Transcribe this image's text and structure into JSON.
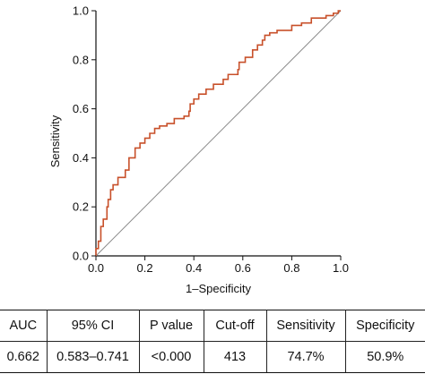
{
  "chart_data": {
    "type": "line",
    "xlabel": "1–Specificity",
    "ylabel": "Sensitivity",
    "xlim": [
      0,
      1
    ],
    "ylim": [
      0,
      1
    ],
    "xticks": [
      "0.0",
      "0.2",
      "0.4",
      "0.6",
      "0.8",
      "1.0"
    ],
    "yticks": [
      "0.0",
      "0.2",
      "0.4",
      "0.6",
      "0.8",
      "1.0"
    ],
    "grid": false,
    "colors": {
      "roc": "#c8502a",
      "reference": "#8a8a8a",
      "axis": "#111111"
    },
    "roc_curve": [
      [
        0.0,
        0.0
      ],
      [
        0.0,
        0.03
      ],
      [
        0.01,
        0.03
      ],
      [
        0.01,
        0.06
      ],
      [
        0.02,
        0.06
      ],
      [
        0.02,
        0.12
      ],
      [
        0.03,
        0.12
      ],
      [
        0.03,
        0.15
      ],
      [
        0.045,
        0.15
      ],
      [
        0.045,
        0.2
      ],
      [
        0.05,
        0.2
      ],
      [
        0.05,
        0.23
      ],
      [
        0.06,
        0.23
      ],
      [
        0.06,
        0.27
      ],
      [
        0.07,
        0.27
      ],
      [
        0.07,
        0.29
      ],
      [
        0.09,
        0.29
      ],
      [
        0.09,
        0.32
      ],
      [
        0.12,
        0.32
      ],
      [
        0.12,
        0.35
      ],
      [
        0.135,
        0.35
      ],
      [
        0.135,
        0.4
      ],
      [
        0.16,
        0.4
      ],
      [
        0.16,
        0.44
      ],
      [
        0.18,
        0.44
      ],
      [
        0.18,
        0.46
      ],
      [
        0.2,
        0.46
      ],
      [
        0.2,
        0.48
      ],
      [
        0.22,
        0.48
      ],
      [
        0.22,
        0.5
      ],
      [
        0.24,
        0.5
      ],
      [
        0.24,
        0.52
      ],
      [
        0.26,
        0.52
      ],
      [
        0.26,
        0.53
      ],
      [
        0.29,
        0.53
      ],
      [
        0.29,
        0.54
      ],
      [
        0.32,
        0.54
      ],
      [
        0.32,
        0.56
      ],
      [
        0.36,
        0.56
      ],
      [
        0.36,
        0.57
      ],
      [
        0.38,
        0.57
      ],
      [
        0.38,
        0.59
      ],
      [
        0.385,
        0.59
      ],
      [
        0.385,
        0.62
      ],
      [
        0.4,
        0.62
      ],
      [
        0.4,
        0.64
      ],
      [
        0.42,
        0.64
      ],
      [
        0.42,
        0.66
      ],
      [
        0.45,
        0.66
      ],
      [
        0.45,
        0.68
      ],
      [
        0.48,
        0.68
      ],
      [
        0.48,
        0.7
      ],
      [
        0.52,
        0.7
      ],
      [
        0.52,
        0.72
      ],
      [
        0.54,
        0.72
      ],
      [
        0.54,
        0.74
      ],
      [
        0.58,
        0.74
      ],
      [
        0.58,
        0.76
      ],
      [
        0.585,
        0.76
      ],
      [
        0.585,
        0.79
      ],
      [
        0.61,
        0.79
      ],
      [
        0.61,
        0.81
      ],
      [
        0.64,
        0.81
      ],
      [
        0.64,
        0.84
      ],
      [
        0.66,
        0.84
      ],
      [
        0.66,
        0.86
      ],
      [
        0.68,
        0.86
      ],
      [
        0.68,
        0.88
      ],
      [
        0.69,
        0.88
      ],
      [
        0.69,
        0.9
      ],
      [
        0.71,
        0.9
      ],
      [
        0.71,
        0.91
      ],
      [
        0.74,
        0.91
      ],
      [
        0.74,
        0.92
      ],
      [
        0.8,
        0.92
      ],
      [
        0.8,
        0.94
      ],
      [
        0.84,
        0.94
      ],
      [
        0.84,
        0.95
      ],
      [
        0.88,
        0.95
      ],
      [
        0.88,
        0.97
      ],
      [
        0.94,
        0.97
      ],
      [
        0.94,
        0.98
      ],
      [
        0.97,
        0.98
      ],
      [
        0.97,
        0.99
      ],
      [
        0.99,
        0.99
      ],
      [
        0.99,
        1.0
      ],
      [
        1.0,
        1.0
      ]
    ],
    "reference_line": [
      [
        0,
        0
      ],
      [
        1,
        1
      ]
    ]
  },
  "table": {
    "headers": [
      "AUC",
      "95% CI",
      "P value",
      "Cut-off",
      "Sensitivity",
      "Specificity"
    ],
    "values": [
      "0.662",
      "0.583–0.741",
      "<0.000",
      "413",
      "74.7%",
      "50.9%"
    ]
  }
}
